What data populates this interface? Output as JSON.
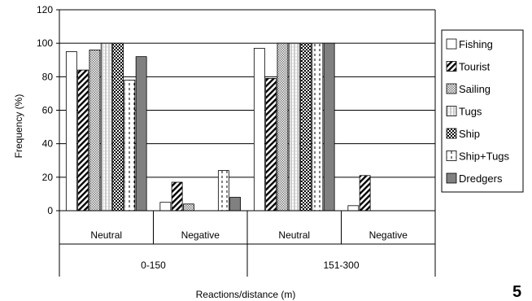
{
  "chart_data": {
    "type": "bar",
    "groups": [
      {
        "label": "0-150",
        "categories": [
          "Neutral",
          "Negative"
        ]
      },
      {
        "label": "151-300",
        "categories": [
          "Neutral",
          "Negative"
        ]
      }
    ],
    "categories": [
      "Neutral",
      "Negative",
      "Neutral",
      "Negative"
    ],
    "series": [
      {
        "name": "Fishing",
        "pattern": "white",
        "values": [
          95,
          5,
          97,
          3
        ]
      },
      {
        "name": "Tourist",
        "pattern": "diag",
        "values": [
          84,
          17,
          79,
          21
        ]
      },
      {
        "name": "Sailing",
        "pattern": "dots",
        "values": [
          96,
          4,
          100,
          0
        ]
      },
      {
        "name": "Tugs",
        "pattern": "vlines",
        "values": [
          100,
          0,
          100,
          0
        ]
      },
      {
        "name": "Ship",
        "pattern": "checker",
        "values": [
          100,
          0,
          100,
          0
        ]
      },
      {
        "name": "Ship+Tugs",
        "pattern": "dashed",
        "values": [
          78,
          24,
          100,
          0
        ]
      },
      {
        "name": "Dredgers",
        "pattern": "solid",
        "values": [
          92,
          8,
          100,
          0
        ]
      }
    ],
    "ylabel": "Frequency (%)",
    "xlabel": "Reactions/distance (m)",
    "ylim": [
      0,
      120
    ],
    "yticks": [
      0,
      20,
      40,
      60,
      80,
      100,
      120
    ],
    "grid": true,
    "legend": "right",
    "corner_label": "5",
    "colors": {
      "solid": "#808080",
      "stroke": "#000000"
    }
  }
}
